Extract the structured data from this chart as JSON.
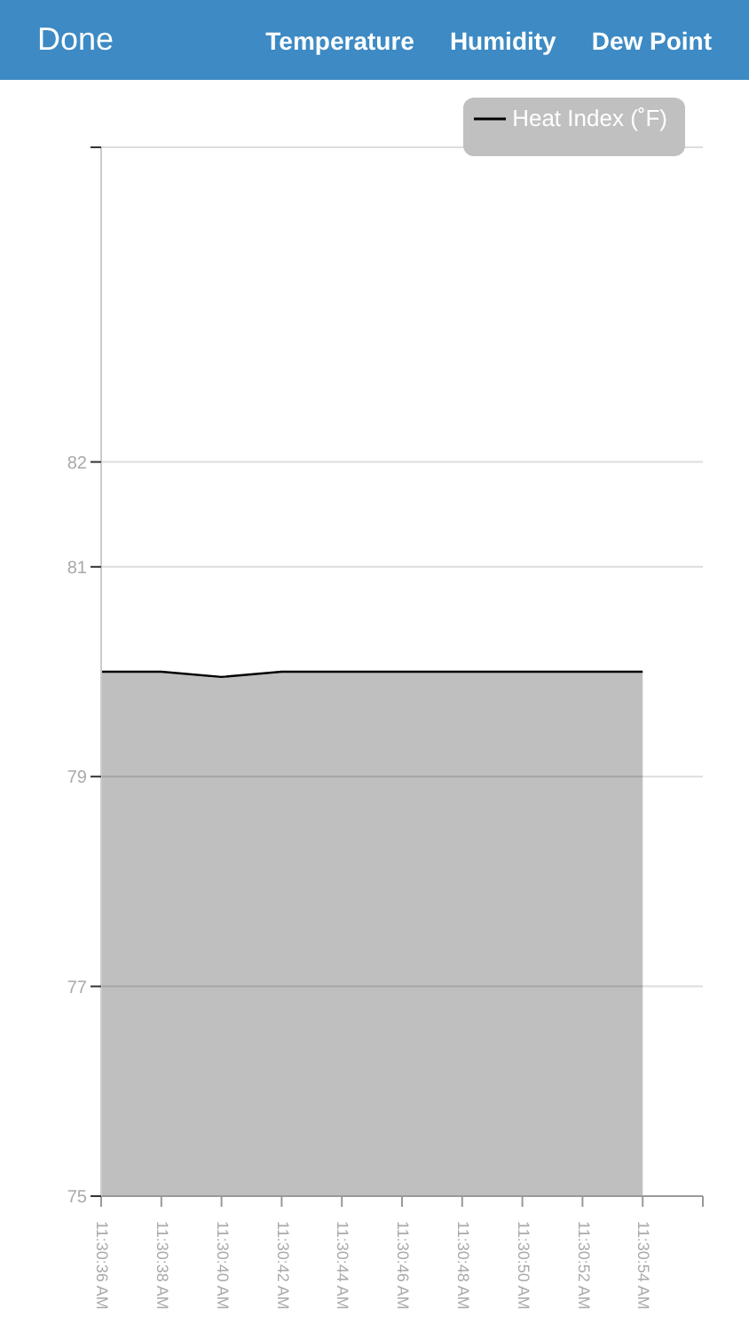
{
  "chart_data": {
    "type": "area",
    "categories": [
      "11:30:36 AM",
      "11:30:38 AM",
      "11:30:40 AM",
      "11:30:42 AM",
      "11:30:44 AM",
      "11:30:46 AM",
      "11:30:48 AM",
      "11:30:50 AM",
      "11:30:52 AM",
      "11:30:54 AM",
      null
    ],
    "series": [
      {
        "name": "Heat Index (˚F)",
        "color": "#000000",
        "values": [
          80,
          80,
          79.95,
          80,
          80,
          80,
          80,
          80,
          80,
          80,
          null
        ]
      }
    ],
    "ylim": [
      75,
      85
    ],
    "yticks": [
      75,
      77,
      79,
      81,
      82,
      {
        "value": 85,
        "label": null
      }
    ],
    "grid": "y",
    "legend": "top right",
    "marker": "none",
    "line_style": "solid",
    "annotations": [
      "Done",
      "Temperature",
      "Humidity",
      "Dew Point"
    ]
  }
}
